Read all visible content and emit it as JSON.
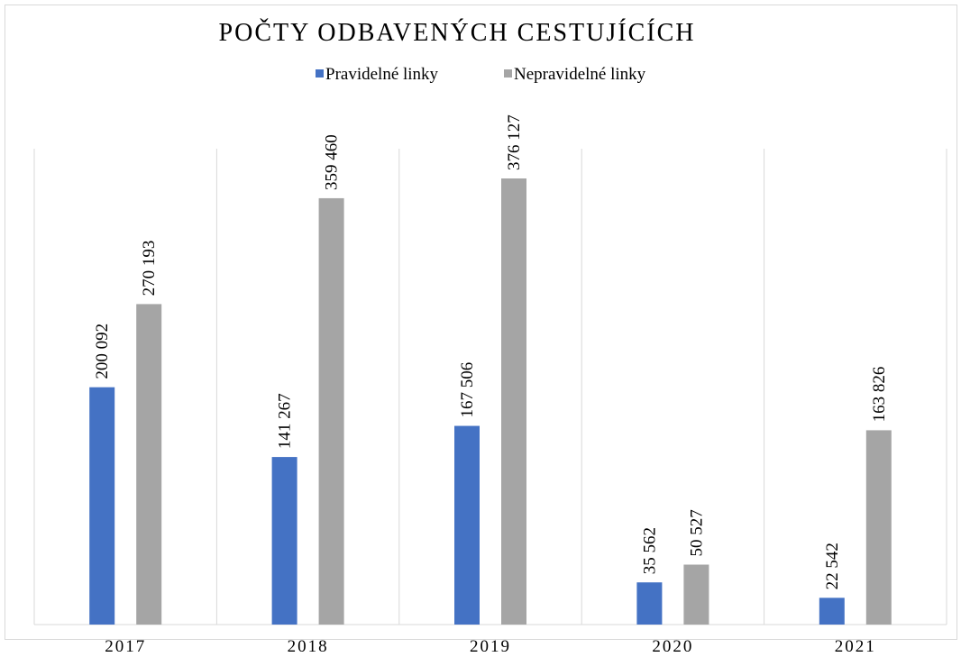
{
  "chart_data": {
    "type": "bar",
    "title": "POČTY ODBAVENÝCH CESTUJÍCÍCH",
    "categories": [
      "2017",
      "2018",
      "2019",
      "2020",
      "2021"
    ],
    "series": [
      {
        "name": "Pravidelné linky",
        "color": "#4472c4",
        "values": [
          200092,
          141267,
          167506,
          35562,
          22542
        ],
        "value_labels": [
          "200 092",
          "141 267",
          "167 506",
          "35 562",
          "22 542"
        ]
      },
      {
        "name": "Nepravidelné linky",
        "color": "#a5a5a5",
        "values": [
          270193,
          359460,
          376127,
          50527,
          163826
        ],
        "value_labels": [
          "270 193",
          "359 460",
          "376 127",
          "50 527",
          "163 826"
        ]
      }
    ],
    "legend": "top",
    "grid": true
  }
}
